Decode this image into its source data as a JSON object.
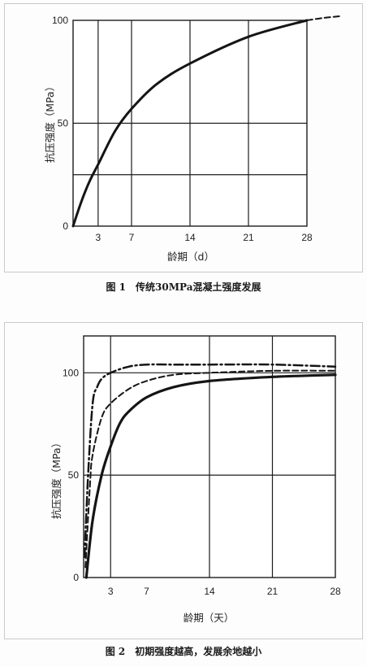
{
  "chart_data": [
    {
      "type": "line",
      "title": "图 1　传统30MPa混凝土强度发展",
      "xlabel": "龄期（d）",
      "ylabel": "抗压强度（MPa）",
      "xlim": [
        0,
        28
      ],
      "ylim": [
        0,
        100
      ],
      "x_ticks": [
        3,
        7,
        14,
        21,
        28
      ],
      "y_ticks": [
        0,
        50,
        100
      ],
      "x_grid": [
        3,
        7,
        14,
        21
      ],
      "y_grid": [
        25,
        50
      ],
      "grid": true,
      "legend": "none",
      "series": [
        {
          "style": "solid",
          "x": [
            0,
            1,
            2,
            3,
            5,
            7,
            10,
            14,
            21,
            28
          ],
          "y": [
            0,
            12,
            22,
            30,
            46,
            57,
            69,
            79,
            92,
            100
          ]
        },
        {
          "style": "dashed",
          "x": [
            28,
            30,
            32
          ],
          "y": [
            100,
            101.2,
            102
          ]
        }
      ]
    },
    {
      "type": "line",
      "title": "图 2　初期强度越高，发展余地越小",
      "xlabel": "龄期（天）",
      "ylabel": "抗压强度（MPa）",
      "xlim": [
        0,
        28
      ],
      "ylim": [
        0,
        118
      ],
      "x_ticks": [
        3,
        7,
        14,
        21,
        28
      ],
      "y_ticks": [
        0,
        50,
        100
      ],
      "x_grid": [
        3,
        14,
        21
      ],
      "y_grid": [
        50,
        100
      ],
      "grid": true,
      "legend": "none",
      "series": [
        {
          "style": "solid",
          "x": [
            0.3,
            1,
            2,
            3,
            4,
            5,
            7,
            10,
            14,
            21,
            28
          ],
          "y": [
            0,
            28,
            50,
            64,
            75,
            81,
            88,
            93,
            96,
            98,
            99
          ]
        },
        {
          "style": "dashed",
          "x": [
            0.2,
            0.7,
            1,
            2,
            3,
            5,
            7,
            10,
            14,
            21,
            28
          ],
          "y": [
            5,
            45,
            60,
            78,
            85,
            92,
            96,
            99,
            100,
            101,
            101
          ]
        },
        {
          "style": "dashdot",
          "x": [
            0.1,
            0.5,
            1,
            1.5,
            2,
            3,
            5,
            7,
            10,
            14,
            21,
            28
          ],
          "y": [
            10,
            50,
            85,
            93,
            97,
            100,
            103,
            104,
            104,
            104,
            104,
            103
          ]
        }
      ]
    }
  ]
}
